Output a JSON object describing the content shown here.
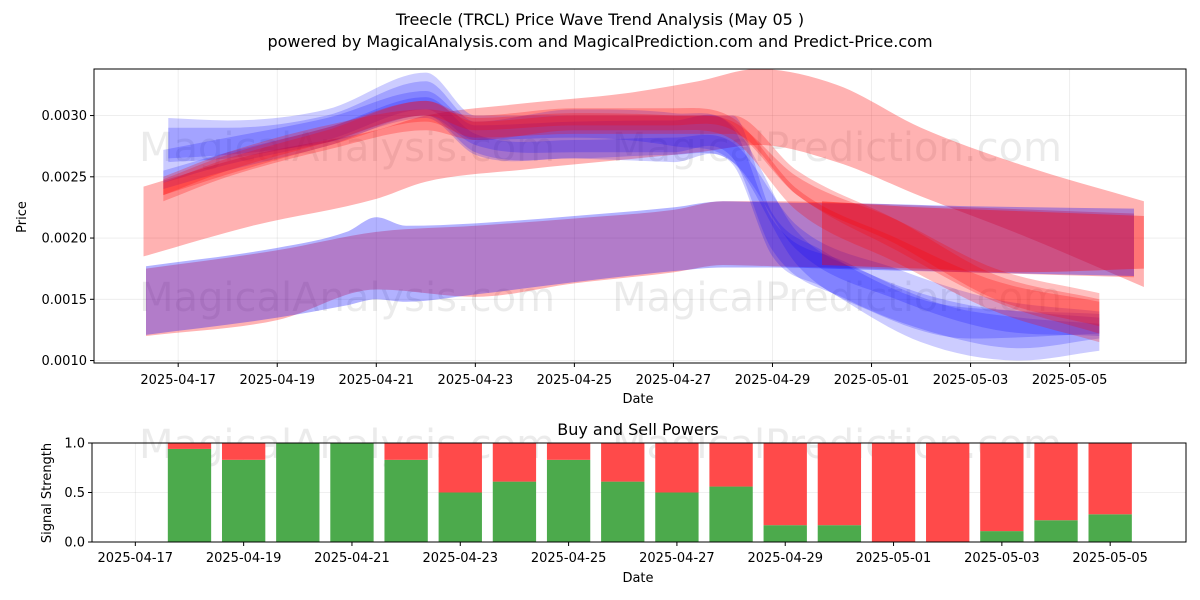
{
  "chart_data": [
    {
      "type": "area",
      "title": "Treecle (TRCL) Price Wave Trend Analysis (May 05 )",
      "subtitle": "powered by MagicalAnalysis.com and MagicalPrediction.com and Predict-Price.com",
      "xlabel": "Date",
      "ylabel": "Price",
      "xlim": [
        -1.7,
        20.35
      ],
      "ylim": [
        0.00098,
        0.00338
      ],
      "x_ticks": [
        {
          "x": 0,
          "label": "2025-04-17"
        },
        {
          "x": 2,
          "label": "2025-04-19"
        },
        {
          "x": 4,
          "label": "2025-04-21"
        },
        {
          "x": 6,
          "label": "2025-04-23"
        },
        {
          "x": 8,
          "label": "2025-04-25"
        },
        {
          "x": 10,
          "label": "2025-04-27"
        },
        {
          "x": 12,
          "label": "2025-04-29"
        },
        {
          "x": 14,
          "label": "2025-05-01"
        },
        {
          "x": 16,
          "label": "2025-05-03"
        },
        {
          "x": 18,
          "label": "2025-05-05"
        }
      ],
      "y_ticks": [
        {
          "y": 0.001,
          "label": "0.0010"
        },
        {
          "y": 0.0015,
          "label": "0.0015"
        },
        {
          "y": 0.002,
          "label": "0.0020"
        },
        {
          "y": 0.0025,
          "label": "0.0025"
        },
        {
          "y": 0.003,
          "label": "0.0030"
        }
      ],
      "grid": true,
      "watermarks": [
        "MagicalAnalysis.com",
        "MagicalPrediction.com",
        "MagicalAnalysis.com",
        "MagicalPrediction.com"
      ],
      "bands": [
        {
          "name": "red-wide",
          "color": "#ff0000",
          "opacity": 0.3,
          "x": [
            -0.7,
            1.5,
            4.0,
            5.0,
            7.0,
            9.0,
            10.5,
            11.7,
            13.3,
            15.0,
            17.0,
            19.5
          ],
          "upper": [
            0.00242,
            0.00268,
            0.00288,
            0.003,
            0.0031,
            0.00318,
            0.00328,
            0.00338,
            0.00325,
            0.0029,
            0.0026,
            0.0023
          ],
          "lower": [
            0.00185,
            0.0021,
            0.00232,
            0.00246,
            0.00256,
            0.00264,
            0.0027,
            0.00276,
            0.00262,
            0.00234,
            0.00203,
            0.0016
          ]
        },
        {
          "name": "purple-lower-red",
          "color": "#ff0000",
          "opacity": 0.3,
          "x": [
            -0.65,
            2.0,
            4.0,
            6.0,
            8.0,
            10.0,
            11.0,
            12.0,
            14.0,
            16.0,
            19.3
          ],
          "upper": [
            0.00175,
            0.0019,
            0.00205,
            0.0021,
            0.00216,
            0.00223,
            0.0023,
            0.0023,
            0.00228,
            0.00225,
            0.0022
          ],
          "lower": [
            0.0012,
            0.00133,
            0.00158,
            0.00152,
            0.00163,
            0.00172,
            0.00178,
            0.00177,
            0.00175,
            0.00172,
            0.00168
          ]
        },
        {
          "name": "purple-lower-blue",
          "color": "#0000ff",
          "opacity": 0.3,
          "x": [
            -0.65,
            2.0,
            3.4,
            4.0,
            4.6,
            6.0,
            8.0,
            10.0,
            11.0,
            12.0,
            14.0,
            16.0,
            19.3
          ],
          "upper": [
            0.00177,
            0.00192,
            0.00205,
            0.00217,
            0.0021,
            0.00212,
            0.00218,
            0.00225,
            0.0023,
            0.00229,
            0.00228,
            0.00226,
            0.00224
          ],
          "lower": [
            0.00121,
            0.00135,
            0.00145,
            0.0015,
            0.00148,
            0.00154,
            0.00164,
            0.00173,
            0.00176,
            0.00176,
            0.00174,
            0.00172,
            0.00169
          ]
        },
        {
          "name": "blue-upper-1",
          "color": "#0000ff",
          "opacity": 0.2,
          "x": [
            -0.2,
            1.0,
            3.0,
            5.0,
            6.0,
            8.0,
            10.0,
            11.2,
            12.0,
            13.0,
            15.0,
            17.0,
            18.6
          ],
          "upper": [
            0.00298,
            0.00296,
            0.00305,
            0.00335,
            0.003,
            0.003,
            0.003,
            0.003,
            0.0022,
            0.0019,
            0.0015,
            0.0014,
            0.00135
          ],
          "lower": [
            0.00265,
            0.00268,
            0.00278,
            0.00298,
            0.00268,
            0.00265,
            0.00262,
            0.0026,
            0.00185,
            0.0016,
            0.00115,
            0.001,
            0.00108
          ]
        },
        {
          "name": "blue-upper-2",
          "color": "#0000ff",
          "opacity": 0.2,
          "x": [
            -0.3,
            1.0,
            3.0,
            5.0,
            6.0,
            8.0,
            10.0,
            11.2,
            12.0,
            13.5,
            15.5,
            17.0,
            18.6
          ],
          "upper": [
            0.00272,
            0.00282,
            0.00298,
            0.0032,
            0.00292,
            0.00295,
            0.00296,
            0.0029,
            0.00215,
            0.0018,
            0.00145,
            0.00135,
            0.0013
          ],
          "lower": [
            0.00245,
            0.0026,
            0.00278,
            0.003,
            0.00276,
            0.0027,
            0.0027,
            0.00265,
            0.0019,
            0.0015,
            0.0012,
            0.0011,
            0.00118
          ]
        },
        {
          "name": "blue-upper-3",
          "color": "#0000ff",
          "opacity": 0.2,
          "x": [
            -0.2,
            1.0,
            3.0,
            5.0,
            6.0,
            8.0,
            10.0,
            11.2,
            12.5,
            14.0,
            16.0,
            18.6
          ],
          "upper": [
            0.0029,
            0.0029,
            0.003,
            0.00328,
            0.00295,
            0.00305,
            0.00302,
            0.00292,
            0.00205,
            0.0017,
            0.00145,
            0.00138
          ],
          "lower": [
            0.00262,
            0.00265,
            0.0028,
            0.00305,
            0.0028,
            0.00282,
            0.00275,
            0.00262,
            0.00178,
            0.0014,
            0.00118,
            0.00122
          ]
        },
        {
          "name": "blue-upper-4",
          "color": "#0000ff",
          "opacity": 0.2,
          "x": [
            -0.3,
            1.0,
            3.0,
            5.0,
            6.0,
            8.0,
            10.0,
            11.2,
            12.5,
            14.5,
            16.5,
            18.6
          ],
          "upper": [
            0.00255,
            0.0027,
            0.0029,
            0.00315,
            0.00285,
            0.0028,
            0.00282,
            0.00278,
            0.0021,
            0.00175,
            0.0015,
            0.0014
          ],
          "lower": [
            0.0024,
            0.00255,
            0.00275,
            0.003,
            0.0027,
            0.00265,
            0.00268,
            0.00262,
            0.0019,
            0.0015,
            0.00125,
            0.0012
          ]
        },
        {
          "name": "red-upper-1",
          "color": "#ff0000",
          "opacity": 0.25,
          "x": [
            -0.3,
            1.0,
            3.0,
            5.0,
            6.0,
            8.0,
            10.0,
            11.2,
            12.5,
            14.5,
            16.5,
            18.6
          ],
          "upper": [
            0.00248,
            0.00268,
            0.0029,
            0.00312,
            0.00295,
            0.003,
            0.003,
            0.003,
            0.00255,
            0.00215,
            0.0017,
            0.0015
          ],
          "lower": [
            0.00235,
            0.00252,
            0.00275,
            0.00295,
            0.00282,
            0.00285,
            0.00285,
            0.00285,
            0.00235,
            0.0019,
            0.00148,
            0.00122
          ]
        },
        {
          "name": "red-upper-2",
          "color": "#ff0000",
          "opacity": 0.25,
          "x": [
            -0.3,
            1.0,
            3.0,
            5.0,
            6.0,
            8.0,
            10.0,
            11.2,
            12.5,
            14.5,
            16.5,
            18.6
          ],
          "upper": [
            0.0025,
            0.0027,
            0.00292,
            0.00305,
            0.003,
            0.00306,
            0.00306,
            0.00298,
            0.0024,
            0.002,
            0.00165,
            0.00148
          ],
          "lower": [
            0.0023,
            0.0025,
            0.00272,
            0.00288,
            0.0028,
            0.00288,
            0.00288,
            0.0028,
            0.00222,
            0.0018,
            0.0014,
            0.00115
          ]
        },
        {
          "name": "red-upper-3",
          "color": "#ff0000",
          "opacity": 0.25,
          "x": [
            -0.3,
            1.0,
            3.0,
            5.0,
            6.0,
            8.0,
            10.0,
            11.2,
            12.5,
            14.5,
            16.5,
            18.6
          ],
          "upper": [
            0.00245,
            0.00265,
            0.00288,
            0.00312,
            0.00298,
            0.00302,
            0.003,
            0.00295,
            0.0025,
            0.00215,
            0.00175,
            0.00155
          ],
          "lower": [
            0.00235,
            0.00255,
            0.00278,
            0.003,
            0.00288,
            0.00292,
            0.00292,
            0.00288,
            0.00235,
            0.00195,
            0.0015,
            0.00128
          ]
        },
        {
          "name": "red-end",
          "color": "#ff0000",
          "opacity": 0.35,
          "x": [
            13.0,
            15.0,
            17.0,
            19.5
          ],
          "upper": [
            0.0023,
            0.00225,
            0.00222,
            0.00218
          ],
          "lower": [
            0.00178,
            0.00175,
            0.00172,
            0.00175
          ]
        }
      ]
    },
    {
      "type": "bar",
      "title": "Buy and Sell Powers",
      "xlabel": "Date",
      "ylabel": "Signal Strength",
      "xlim": [
        -0.8,
        19.4
      ],
      "ylim": [
        0.0,
        1.0
      ],
      "x_ticks": [
        {
          "x": 0,
          "label": "2025-04-17"
        },
        {
          "x": 2,
          "label": "2025-04-19"
        },
        {
          "x": 4,
          "label": "2025-04-21"
        },
        {
          "x": 6,
          "label": "2025-04-23"
        },
        {
          "x": 8,
          "label": "2025-04-25"
        },
        {
          "x": 10,
          "label": "2025-04-27"
        },
        {
          "x": 12,
          "label": "2025-04-29"
        },
        {
          "x": 14,
          "label": "2025-05-01"
        },
        {
          "x": 16,
          "label": "2025-05-03"
        },
        {
          "x": 18,
          "label": "2025-05-05"
        }
      ],
      "y_ticks": [
        {
          "y": 0.0,
          "label": "0.0"
        },
        {
          "y": 0.5,
          "label": "0.5"
        },
        {
          "y": 1.0,
          "label": "1.0"
        }
      ],
      "grid": true,
      "series": [
        {
          "name": "Buy",
          "color": "#4caa4c",
          "values": [
            0.94,
            0.83,
            1.0,
            1.0,
            0.83,
            0.5,
            0.61,
            0.83,
            0.61,
            0.5,
            0.56,
            0.17,
            0.17,
            0.0,
            0.0,
            0.11,
            0.22,
            0.28
          ]
        },
        {
          "name": "Sell",
          "color": "#ff4a4a",
          "values": [
            0.06,
            0.17,
            0.0,
            0.0,
            0.17,
            0.5,
            0.39,
            0.17,
            0.39,
            0.5,
            0.44,
            0.83,
            0.83,
            1.0,
            1.0,
            0.89,
            0.78,
            0.72
          ]
        }
      ],
      "x": [
        1,
        2,
        3,
        4,
        5,
        6,
        7,
        8,
        9,
        10,
        11,
        12,
        13,
        14,
        15,
        16,
        17,
        18
      ],
      "watermarks": [
        "MagicalAnalysis.com",
        "MagicalPrediction.com"
      ]
    }
  ]
}
